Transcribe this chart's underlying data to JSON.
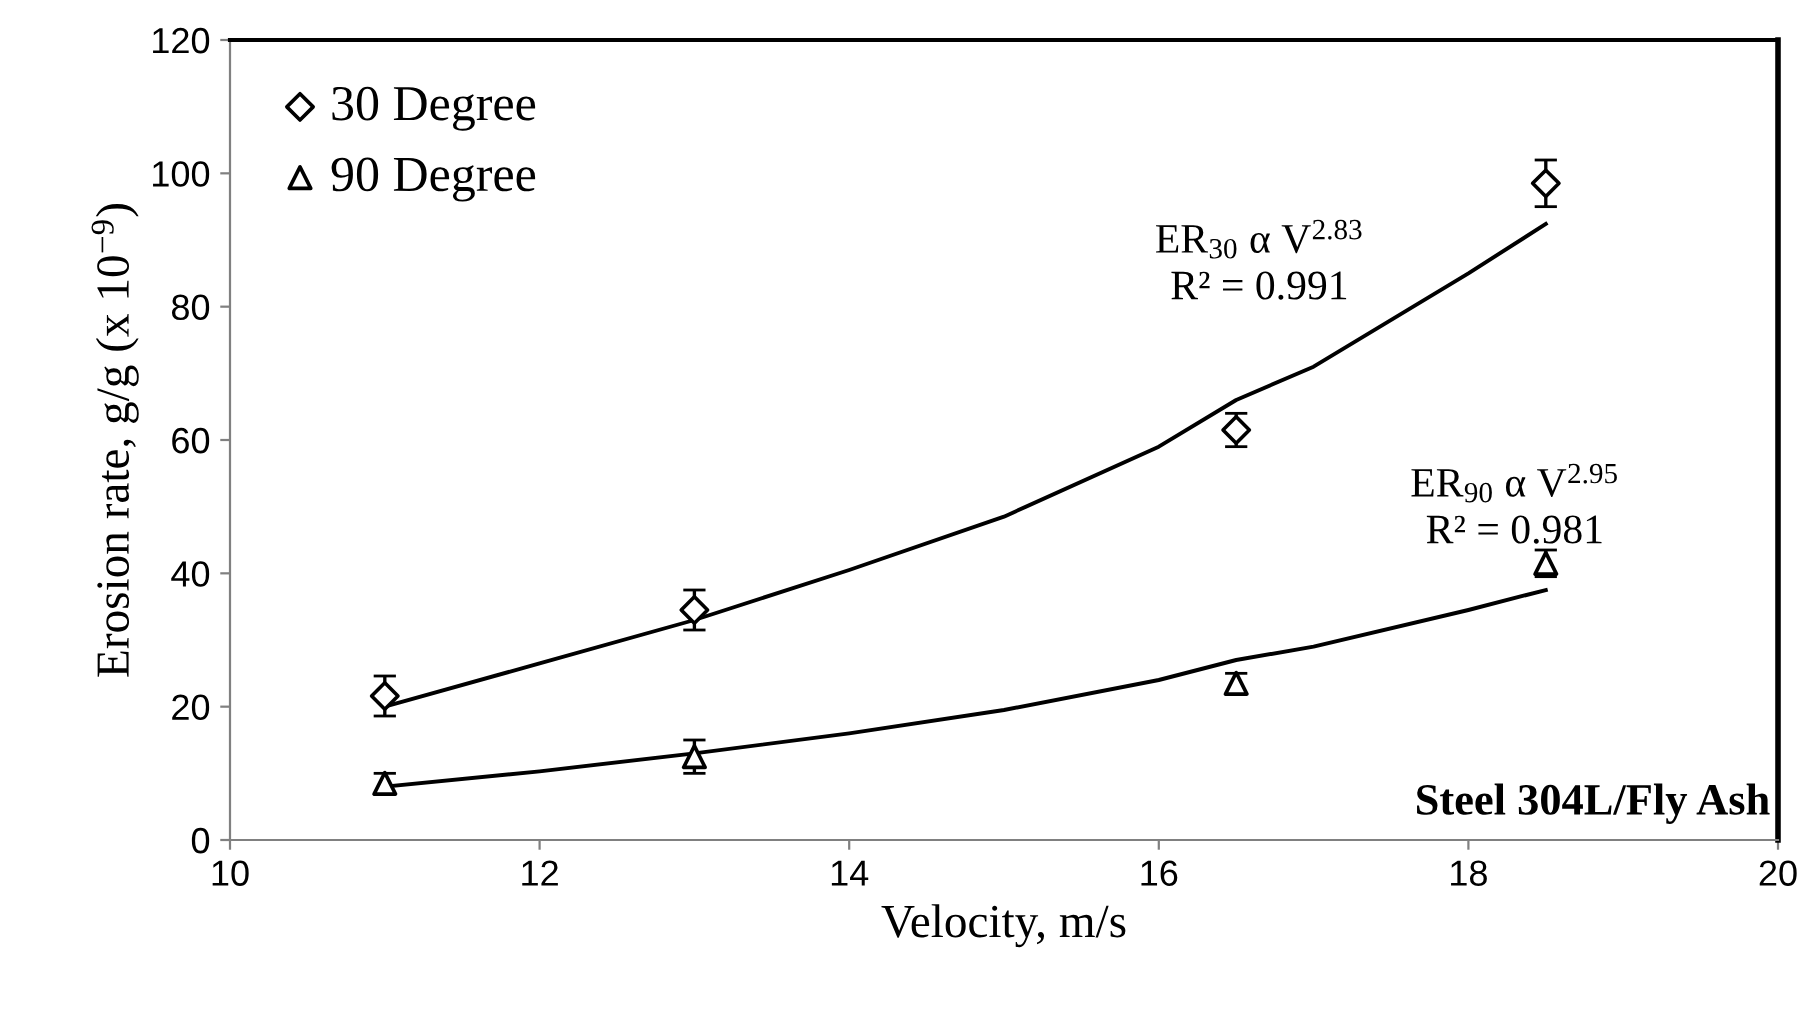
{
  "chart_data": {
    "type": "scatter",
    "xlabel": "Velocity, m/s",
    "ylabel": "Erosion rate, g/g (x 10$^{−9}$)",
    "xlim": [
      10,
      20
    ],
    "xticks": [
      10,
      12,
      14,
      16,
      18,
      20
    ],
    "ylim": [
      0,
      120
    ],
    "yticks": [
      0,
      20,
      40,
      60,
      80,
      100,
      120
    ],
    "grid": false,
    "legend": "top left",
    "series": [
      {
        "name": "30 Degree",
        "marker": "diamond",
        "color": "#000000",
        "x": [
          11,
          13,
          16.5,
          18.5
        ],
        "values": [
          21.6,
          34.5,
          61.5,
          98.5
        ],
        "errors": [
          3,
          3,
          2.5,
          3.5
        ]
      },
      {
        "name": "90 Degree",
        "marker": "triangle",
        "color": "#000000",
        "x": [
          11,
          13,
          16.5,
          18.5
        ],
        "values": [
          8.5,
          12.5,
          23.5,
          41.5
        ],
        "errors": [
          1.5,
          2.5,
          1.5,
          2
        ]
      },
      {
        "type": "line",
        "marker": "none",
        "color": "#000000",
        "x": [
          11,
          12,
          13,
          14,
          15,
          16,
          16.5,
          17,
          18,
          18.5
        ],
        "values": [
          20,
          26.5,
          33,
          40.5,
          48.5,
          59,
          66,
          71,
          85,
          92.4
        ]
      },
      {
        "type": "line",
        "marker": "none",
        "color": "#000000",
        "x": [
          11,
          12,
          13,
          14,
          15,
          16,
          16.5,
          17,
          18,
          18.5
        ],
        "values": [
          8,
          10.3,
          13,
          16,
          19.5,
          24,
          27,
          29,
          34.5,
          37.5
        ]
      }
    ],
    "annotations": [
      "ER$_{30}$ α V$^{2.83}$\nR² = 0.991",
      "ER$_{90}$ α V$^{2.95}$\nR² = 0.981",
      "Steel 304L/Fly Ash"
    ]
  }
}
